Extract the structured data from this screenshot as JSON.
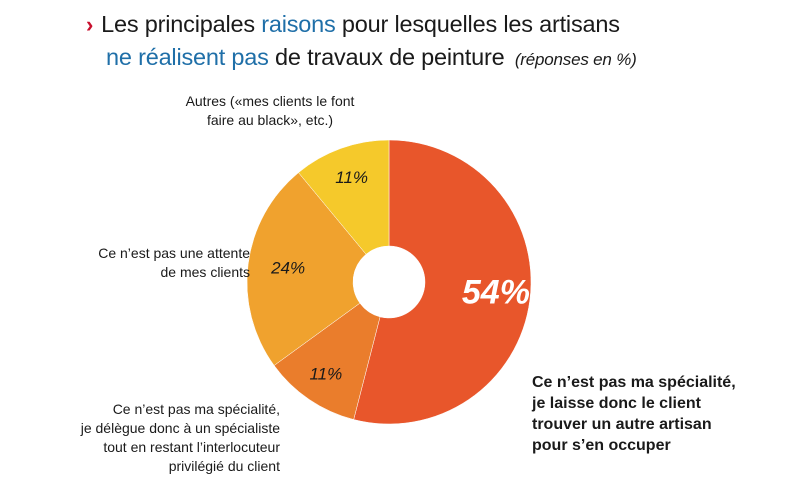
{
  "title": {
    "line1_prefix": "Les principales ",
    "line1_highlight": "raisons",
    "line1_suffix": " pour lesquelles les artisans",
    "line2_highlight": "ne réalisent pas",
    "line2_suffix": " de travaux de peinture ",
    "note": "(réponses en %)",
    "chevron": "›"
  },
  "chart_data": {
    "type": "pie",
    "title": "Les principales raisons pour lesquelles les artisans ne réalisent pas de travaux de peinture (réponses en %)",
    "unit": "%",
    "slices": [
      {
        "label": "Ce n’est pas ma spécialité, je laisse donc le client trouver un autre artisan pour s’en occuper",
        "value": 54,
        "value_label": "54%",
        "color": "#e8562b"
      },
      {
        "label": "Ce n’est pas ma spécialité, je délègue donc à un spécialiste tout en restant l’interlocuteur privilégié du client",
        "value": 11,
        "value_label": "11%",
        "color": "#ea7d2c"
      },
      {
        "label": "Ce n’est pas une attente de mes clients",
        "value": 24,
        "value_label": "24%",
        "color": "#f0a22e"
      },
      {
        "label": "Autres («mes clients le font faire au black», etc.)",
        "value": 11,
        "value_label": "11%",
        "color": "#f5c92b"
      }
    ]
  },
  "labels": {
    "autres": [
      "Autres («mes clients le font",
      "faire au black», etc.)"
    ],
    "attente": [
      "Ce n’est pas une attente",
      "de mes clients"
    ],
    "delegue": [
      "Ce n’est pas ma spécialité,",
      "je délègue donc à un spécialiste",
      "tout en restant l’interlocuteur",
      "privilégié du client"
    ],
    "specialite": [
      "Ce n’est pas ma spécialité,",
      "je laisse donc le client",
      "trouver un autre artisan",
      "pour s’en occuper"
    ]
  }
}
